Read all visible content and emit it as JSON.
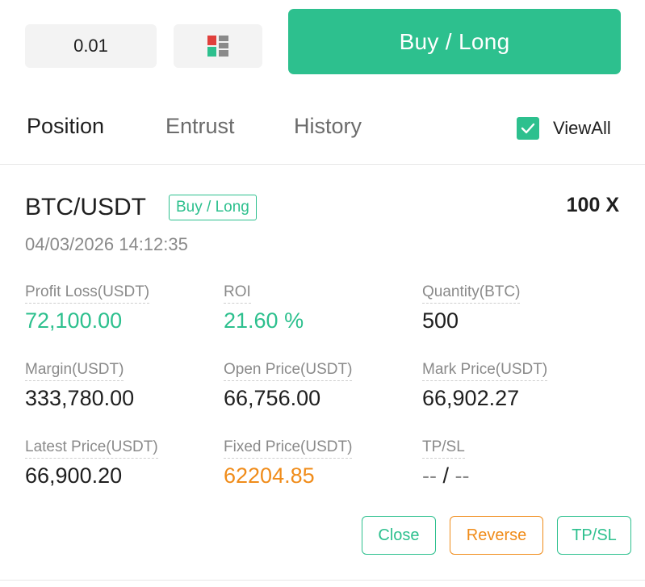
{
  "trade_bar": {
    "quantity_value": "0.01",
    "order_book_icon": "order-book-layout-icon",
    "buy_button_label": "Buy / Long",
    "colors": {
      "buy": "#2dc08e",
      "sell": "#e0403c",
      "neutral": "#8a8a8a"
    }
  },
  "tabs": [
    {
      "label": "Position",
      "active": true
    },
    {
      "label": "Entrust",
      "active": false
    },
    {
      "label": "History",
      "active": false
    }
  ],
  "view_all": {
    "label": "ViewAll",
    "checked": true
  },
  "position": {
    "pair": "BTC/USDT",
    "side": "Buy / Long",
    "leverage": "100 X",
    "timestamp": "04/03/2026 14:12:35",
    "stats": [
      {
        "label": "Profit Loss(USDT)",
        "value": "72,100.00",
        "style": "green"
      },
      {
        "label": "ROI",
        "value": "21.60 %",
        "style": "green"
      },
      {
        "label": "Quantity(BTC)",
        "value": "500",
        "style": "default"
      },
      {
        "label": "Margin(USDT)",
        "value": "333,780.00",
        "style": "default"
      },
      {
        "label": "Open Price(USDT)",
        "value": "66,756.00",
        "style": "default"
      },
      {
        "label": "Mark Price(USDT)",
        "value": "66,902.27",
        "style": "default"
      },
      {
        "label": "Latest Price(USDT)",
        "value": "66,900.20",
        "style": "default"
      },
      {
        "label": "Fixed Price(USDT)",
        "value": "62204.85",
        "style": "orange"
      },
      {
        "label": "TP/SL",
        "value_left": "--",
        "value_sep": "/",
        "value_right": "--",
        "style": "dim"
      }
    ],
    "actions": {
      "close_label": "Close",
      "reverse_label": "Reverse",
      "tpsl_label": "TP/SL"
    },
    "colors": {
      "profit": "#2dc08e",
      "fixed_price": "#f08c1a"
    }
  }
}
